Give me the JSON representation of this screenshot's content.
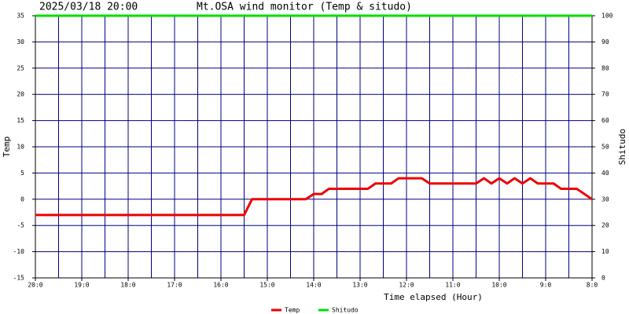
{
  "chart_data": {
    "type": "line",
    "date": "2025/03/18 20:00",
    "title": "Mt.OSA wind monitor (Temp & situdo)",
    "xlabel": "Time elapsed (Hour)",
    "ylabel": "Temp",
    "y2label": "Shitudo",
    "x": [
      0,
      4.5,
      4.67,
      5.83,
      6,
      6.17,
      6.33,
      7.17,
      7.33,
      7.67,
      7.83,
      8.33,
      8.5,
      9.5,
      9.67,
      9.83,
      10,
      10.17,
      10.33,
      10.5,
      10.67,
      10.83,
      11.17,
      11.33,
      11.67,
      12
    ],
    "series": [
      {
        "name": "Temp",
        "color": "#ee0000",
        "values": [
          -3,
          -3,
          0,
          0,
          1,
          1,
          2,
          2,
          3,
          3,
          4,
          4,
          3,
          3,
          4,
          3,
          4,
          3,
          4,
          3,
          4,
          3,
          3,
          2,
          2,
          0
        ]
      },
      {
        "name": "Shitudo",
        "color": "#00dd00",
        "axis": "y2",
        "values": [
          100,
          100,
          100,
          100,
          100,
          100,
          100,
          100,
          100,
          100,
          100,
          100,
          100,
          100,
          100,
          100,
          100,
          100,
          100,
          100,
          100,
          100,
          100,
          100,
          100,
          100
        ]
      }
    ],
    "xlim": [
      0,
      12
    ],
    "xticks": [
      {
        "value": 0,
        "label": "20:0"
      },
      {
        "value": 1,
        "label": "19:0"
      },
      {
        "value": 2,
        "label": "18:0"
      },
      {
        "value": 3,
        "label": "17:0"
      },
      {
        "value": 4,
        "label": "16:0"
      },
      {
        "value": 5,
        "label": "15:0"
      },
      {
        "value": 6,
        "label": "14:0"
      },
      {
        "value": 7,
        "label": "13:0"
      },
      {
        "value": 8,
        "label": "12:0"
      },
      {
        "value": 9,
        "label": "11:0"
      },
      {
        "value": 10,
        "label": "10:0"
      },
      {
        "value": 11,
        "label": "9:0"
      },
      {
        "value": 12,
        "label": "8:0"
      }
    ],
    "ylim": [
      -15,
      35
    ],
    "yticks": [
      -15,
      -10,
      -5,
      0,
      5,
      10,
      15,
      20,
      25,
      30,
      35
    ],
    "y2lim": [
      0,
      100
    ],
    "y2ticks": [
      0,
      10,
      20,
      30,
      40,
      50,
      60,
      70,
      80,
      90,
      100
    ],
    "grid": true,
    "grid_color": "#000080"
  }
}
